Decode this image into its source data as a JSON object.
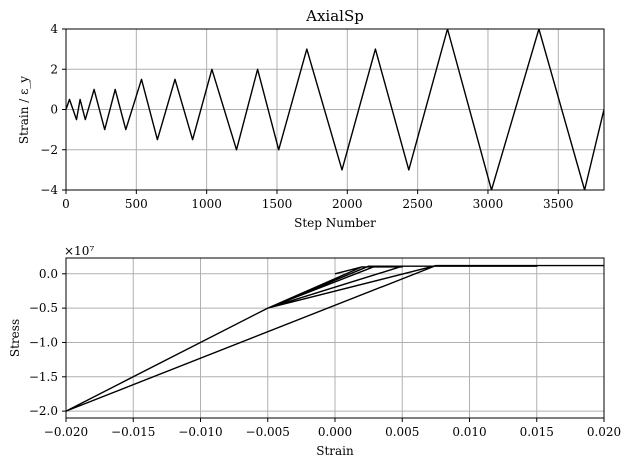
{
  "chart_data": [
    {
      "type": "line",
      "title": "AxialSp",
      "xlabel": "Step Number",
      "ylabel": "Strain / ε_y",
      "xlim": [
        0,
        3825
      ],
      "ylim": [
        -4,
        4
      ],
      "x_ticks": [
        0,
        500,
        1000,
        1500,
        2000,
        2500,
        3000,
        3500
      ],
      "x_tick_labels": [
        "0",
        "500",
        "1000",
        "1500",
        "2000",
        "2500",
        "3000",
        "3500"
      ],
      "y_ticks": [
        -4,
        -2,
        0,
        2,
        4
      ],
      "y_tick_labels": [
        "−4",
        "−2",
        "0",
        "2",
        "4"
      ],
      "grid": true,
      "series": [
        {
          "color": "#000000",
          "x": [
            0,
            25,
            50,
            75,
            100,
            137,
            200,
            275,
            350,
            425,
            537,
            650,
            775,
            900,
            1037,
            1212,
            1362,
            1512,
            1712,
            1962,
            2200,
            2437,
            2712,
            3025,
            3362,
            3687,
            3825
          ],
          "y": [
            0,
            0.5,
            0,
            -0.5,
            0.5,
            -0.5,
            1,
            -1,
            1,
            -1,
            1.5,
            -1.5,
            1.5,
            -1.5,
            2,
            -2,
            2,
            -2,
            3,
            -3,
            3,
            -3,
            4,
            -4,
            4,
            -4,
            0
          ]
        }
      ]
    },
    {
      "type": "line",
      "title": "",
      "xlabel": "Strain",
      "ylabel": "Stress",
      "offset_label": "×10⁷",
      "xlim": [
        -0.02,
        0.02
      ],
      "ylim": [
        -2.1,
        0.23
      ],
      "x_ticks": [
        -0.02,
        -0.015,
        -0.01,
        -0.005,
        0,
        0.005,
        0.01,
        0.015,
        0.02
      ],
      "x_tick_labels": [
        "−0.020",
        "−0.015",
        "−0.010",
        "−0.005",
        "0.000",
        "0.005",
        "0.010",
        "0.015",
        "0.020"
      ],
      "y_ticks": [
        -2.0,
        -1.5,
        -1.0,
        -0.5,
        0.0
      ],
      "y_tick_labels": [
        "−2.0",
        "−1.5",
        "−1.0",
        "−0.5",
        "0.0"
      ],
      "y_unit_scale": 10000000,
      "grid": true,
      "series": [
        {
          "color": "#000000",
          "x": [
            0,
            0.002,
            0.0025,
            0.002,
            -0.005,
            0.002,
            0.005,
            0.002,
            -0.005,
            0.0025,
            0.0075,
            0.0025,
            -0.005,
            0.003,
            0.01,
            0.003,
            -0.005,
            0.005,
            0.015,
            0.005,
            -0.005,
            0.0075,
            0.02,
            0.0075,
            -0.005,
            -0.02,
            0.0075
          ],
          "y": [
            0,
            0.1,
            0.1,
            0.1,
            -0.5,
            0.1,
            0.1,
            0.1,
            -0.5,
            0.11,
            0.11,
            0.11,
            -0.5,
            0.11,
            0.11,
            0.11,
            -0.5,
            0.11,
            0.11,
            0.11,
            -0.5,
            0.12,
            0.12,
            0.12,
            -0.5,
            -2.0,
            0.12
          ]
        }
      ]
    }
  ]
}
